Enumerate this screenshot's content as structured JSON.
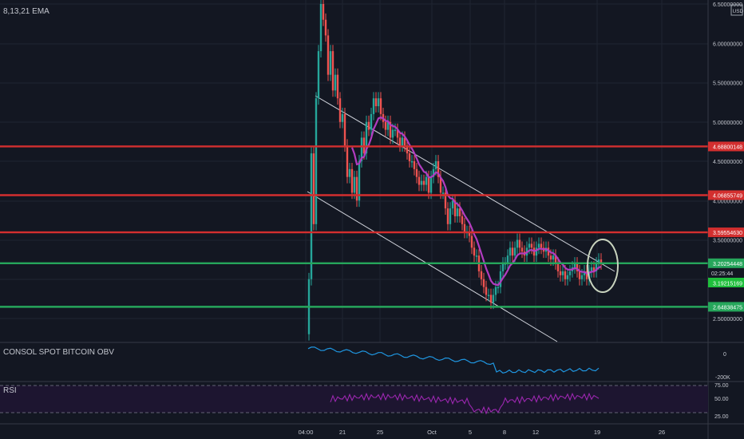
{
  "main": {
    "indicator_label": "8,13,21 EMA",
    "currency_badge": "USD",
    "y_ticks": [
      "6.50000000",
      "6.00000000",
      "5.50000000",
      "5.00000000",
      "4.50000000",
      "4.00000000",
      "3.50000000",
      "2.50000000"
    ],
    "y_tick_values": [
      6.5,
      6.0,
      5.5,
      5.0,
      4.5,
      4.0,
      3.5,
      2.5
    ],
    "levels": [
      {
        "label": "4.68800148",
        "value": 4.688,
        "color": "#d32f2f"
      },
      {
        "label": "4.06855749",
        "value": 4.0686,
        "color": "#d32f2f"
      },
      {
        "label": "3.59554630",
        "value": 3.5955,
        "color": "#d32f2f"
      },
      {
        "label": "3.20254448",
        "value": 3.2025,
        "color": "#26a65b"
      },
      {
        "label": "2.64838475",
        "value": 2.6484,
        "color": "#26a65b"
      }
    ],
    "countdown": "02:25:44",
    "price_label": "3.19215169",
    "price_value": 3.1922
  },
  "x_axis": {
    "ticks": [
      "04:00",
      "21",
      "25",
      "Oct",
      "5",
      "8",
      "12",
      "19",
      "26"
    ]
  },
  "obv": {
    "title": "CONSOL SPOT BITCOIN OBV",
    "ticks": [
      "0",
      "-200K"
    ]
  },
  "rsi": {
    "title": "RSI",
    "ticks": [
      "75.00",
      "50.00",
      "25.00"
    ],
    "tick_values": [
      75,
      50,
      25
    ]
  },
  "chart_data": {
    "type": "line",
    "title": "",
    "xlabel": "",
    "ylabel": "",
    "ylim": [
      2.25,
      6.55
    ],
    "x": [
      "04:00",
      "21",
      "25",
      "Oct",
      "5",
      "8",
      "12",
      "19"
    ],
    "series": [
      {
        "values": [
          2.3,
          4.9,
          4.8,
          4.1,
          3.3,
          3.2,
          3.35,
          3.2
        ]
      }
    ],
    "horizontal_levels": [
      4.688,
      4.0686,
      3.5955,
      3.2025,
      2.6484
    ],
    "last_price": 3.1922
  }
}
